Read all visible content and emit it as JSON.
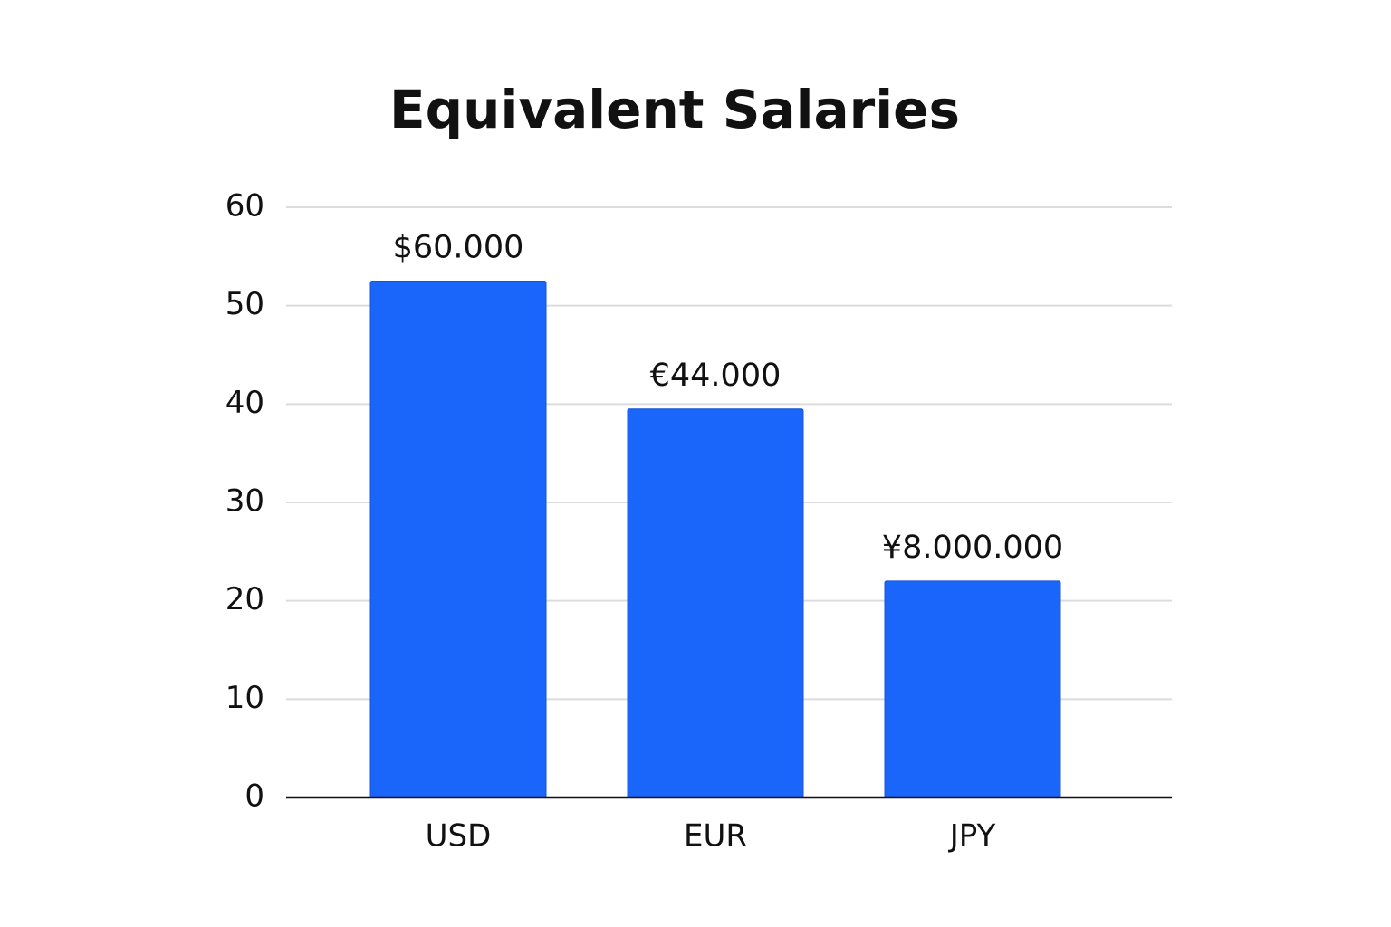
{
  "chart_data": {
    "type": "bar",
    "title": "Equivalent Salaries",
    "categories": [
      "USD",
      "EUR",
      "JPY"
    ],
    "values": [
      52.5,
      39.5,
      22
    ],
    "color": "#1a66fa",
    "annotations": [
      "$60.000",
      "€44.000",
      "¥8.000.000"
    ],
    "ylim": [
      0,
      60
    ],
    "yticks": [
      0,
      10,
      20,
      30,
      40,
      50,
      60
    ],
    "grid": true
  }
}
